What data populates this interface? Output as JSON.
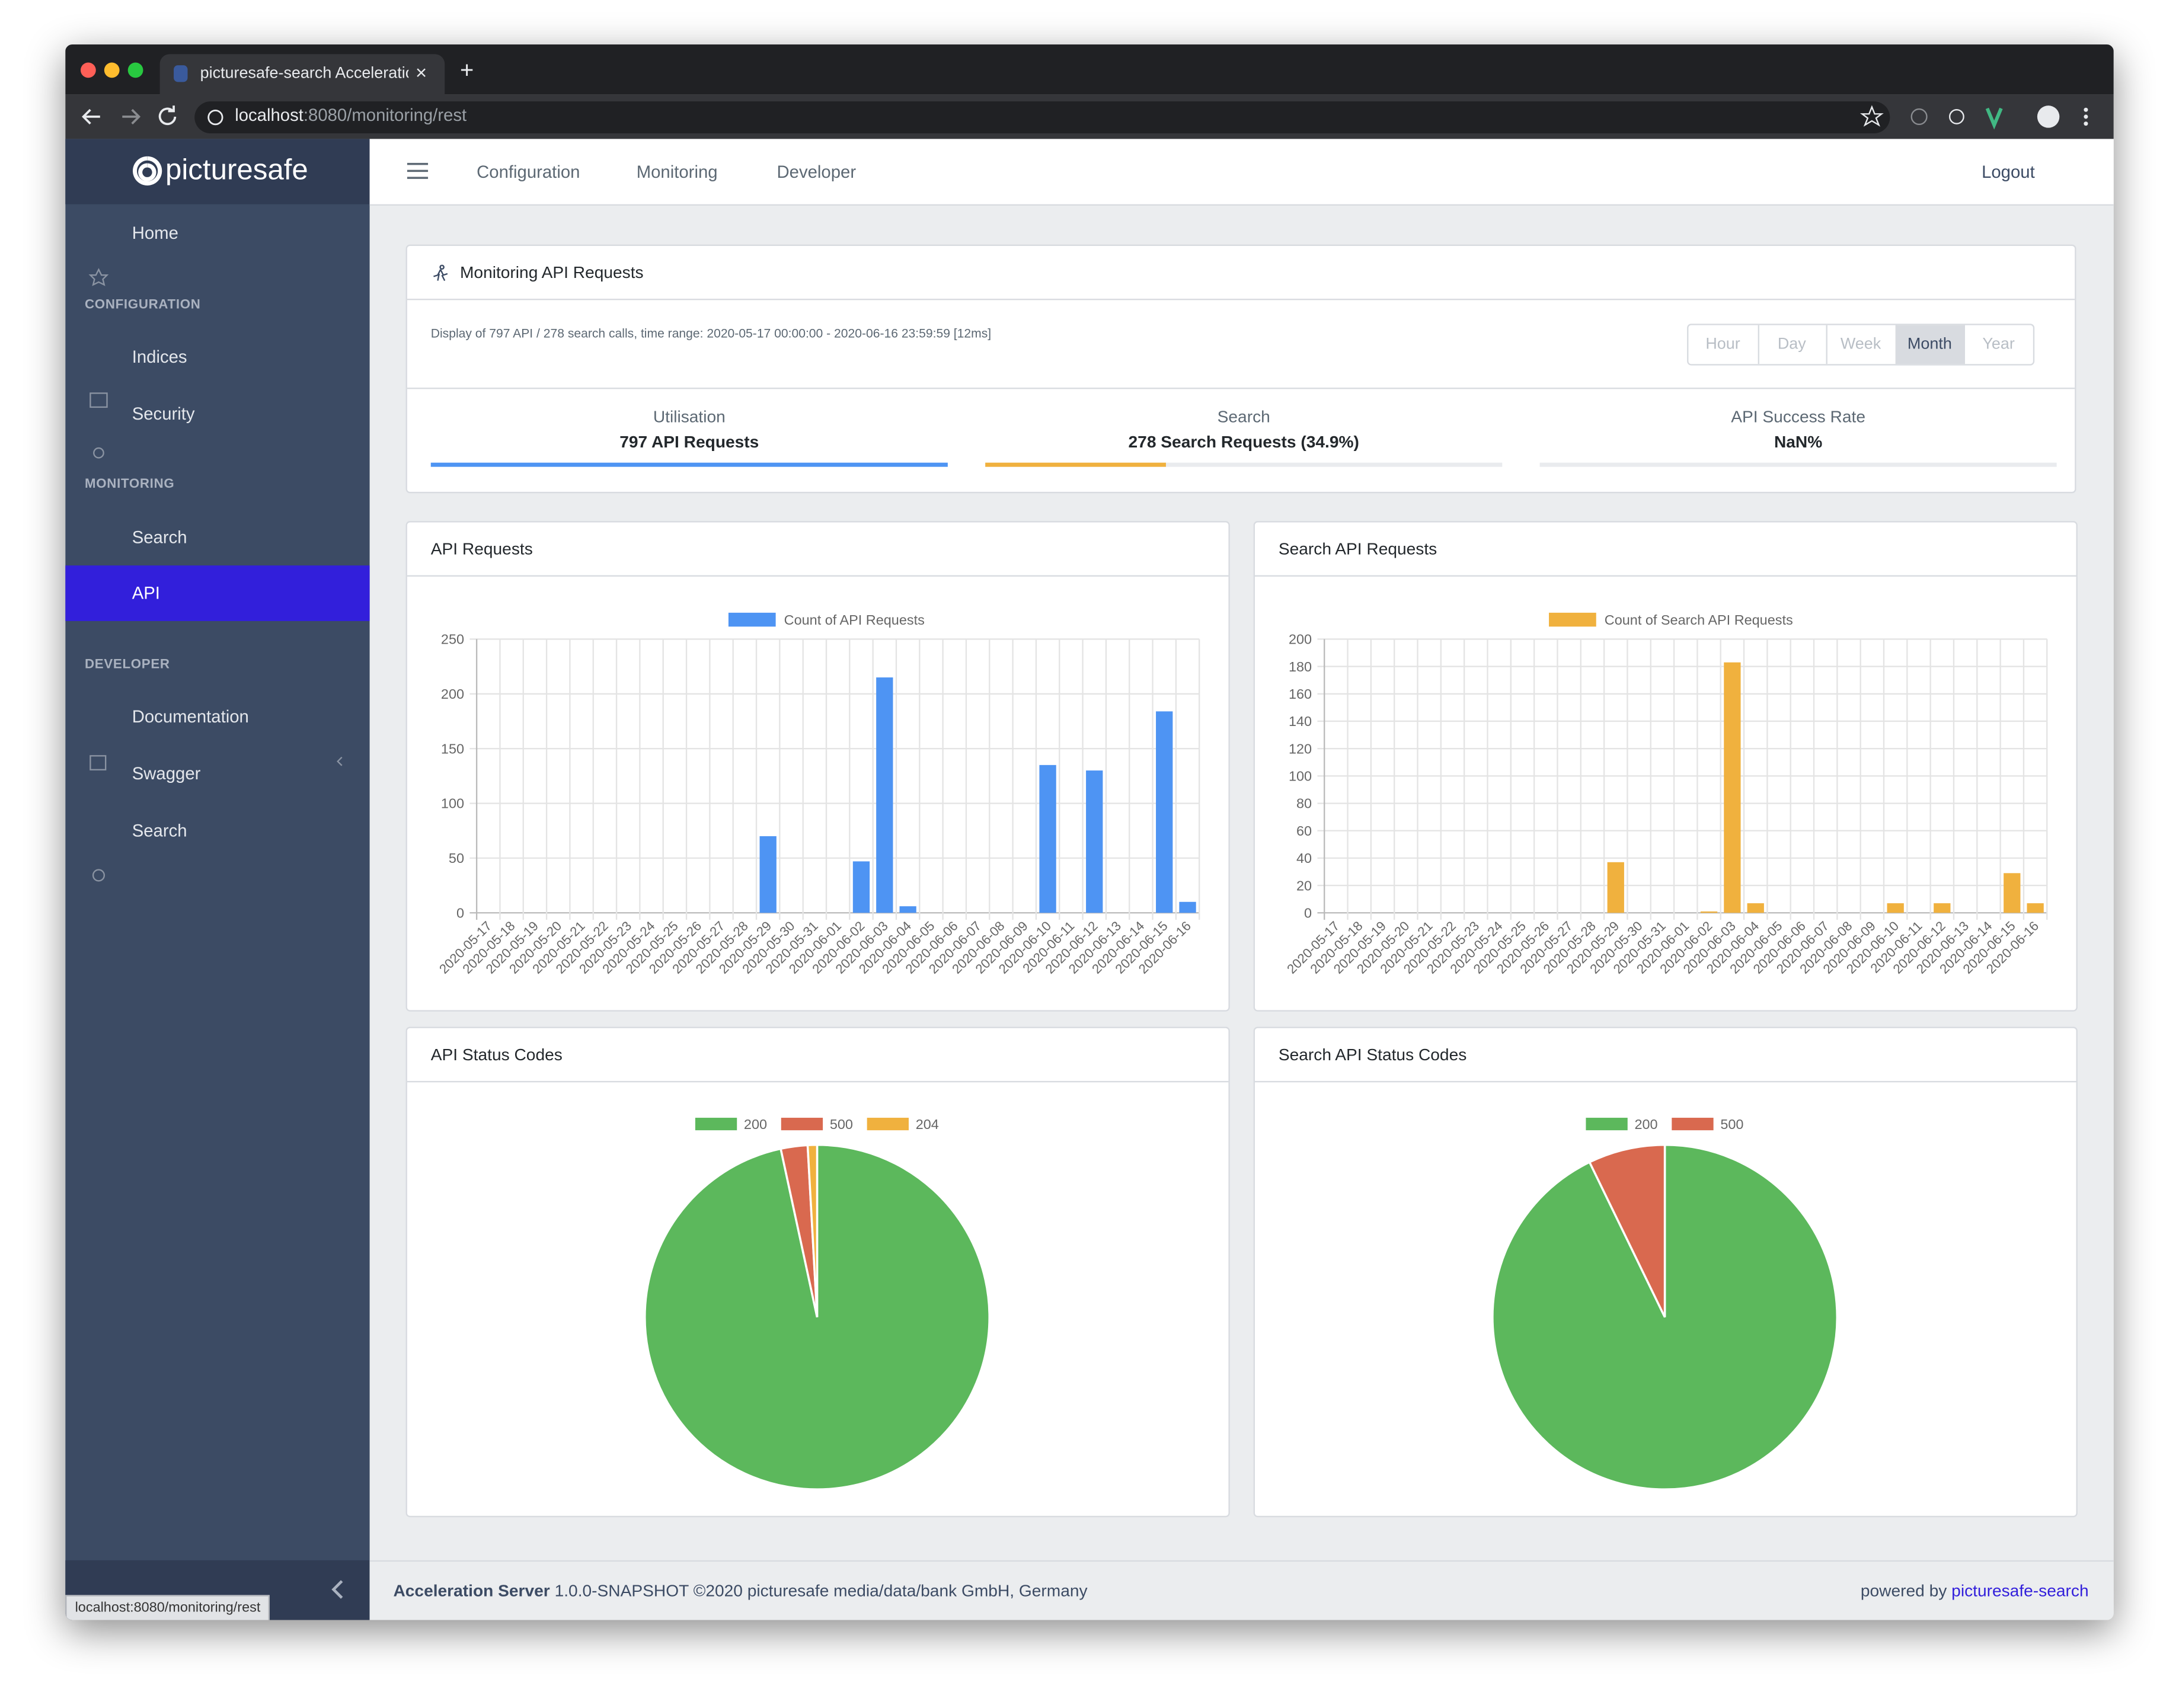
{
  "browser": {
    "tab_title": "picturesafe-search Acceleratio",
    "url_host": "localhost",
    "url_path": ":8080/monitoring/rest",
    "status_url": "localhost:8080/monitoring/rest"
  },
  "sidebar": {
    "brand": "picturesafe",
    "home": "Home",
    "configuration": {
      "header": "CONFIGURATION",
      "items": [
        "Indices",
        "Security"
      ]
    },
    "monitoring": {
      "header": "MONITORING",
      "items": [
        "Search",
        "API"
      ]
    },
    "developer": {
      "header": "DEVELOPER",
      "items": [
        "Documentation",
        "Swagger",
        "Search"
      ]
    }
  },
  "nav": {
    "items": [
      "Configuration",
      "Monitoring",
      "Developer"
    ],
    "logout": "Logout"
  },
  "summary": {
    "title": "Monitoring API Requests",
    "info": "Display of 797 API / 278 search calls, time range: 2020-05-17 00:00:00 - 2020-06-16 23:59:59 [12ms]",
    "ranges": [
      "Hour",
      "Day",
      "Week",
      "Month",
      "Year"
    ],
    "active_range": 3,
    "stats": [
      {
        "label": "Utilisation",
        "value": "797 API Requests",
        "progress": 100,
        "color": "#4e94f3"
      },
      {
        "label": "Search",
        "value": "278 Search Requests (34.9%)",
        "progress": 34.9,
        "color": "#f0b13e"
      },
      {
        "label": "API Success Rate",
        "value": "NaN%",
        "progress": 0,
        "color": "#5cb85c"
      }
    ]
  },
  "chart_data": [
    {
      "type": "bar",
      "title": "API Requests",
      "categories": [
        "2020-05-17",
        "2020-05-18",
        "2020-05-19",
        "2020-05-20",
        "2020-05-21",
        "2020-05-22",
        "2020-05-23",
        "2020-05-24",
        "2020-05-25",
        "2020-05-26",
        "2020-05-27",
        "2020-05-28",
        "2020-05-29",
        "2020-05-30",
        "2020-05-31",
        "2020-06-01",
        "2020-06-02",
        "2020-06-03",
        "2020-06-04",
        "2020-06-05",
        "2020-06-06",
        "2020-06-07",
        "2020-06-08",
        "2020-06-09",
        "2020-06-10",
        "2020-06-11",
        "2020-06-12",
        "2020-06-13",
        "2020-06-14",
        "2020-06-15",
        "2020-06-16"
      ],
      "series": [
        {
          "name": "Count of API Requests",
          "color": "#4e94f3",
          "values": [
            0,
            0,
            0,
            0,
            0,
            0,
            0,
            0,
            0,
            0,
            0,
            0,
            70,
            0,
            0,
            0,
            47,
            215,
            6,
            0,
            0,
            0,
            0,
            0,
            135,
            0,
            130,
            0,
            0,
            184,
            10
          ]
        }
      ],
      "ylim": [
        0,
        250
      ],
      "yticks": [
        0,
        50,
        100,
        150,
        200,
        250
      ],
      "grid": true
    },
    {
      "type": "bar",
      "title": "Search API Requests",
      "categories": [
        "2020-05-17",
        "2020-05-18",
        "2020-05-19",
        "2020-05-20",
        "2020-05-21",
        "2020-05-22",
        "2020-05-23",
        "2020-05-24",
        "2020-05-25",
        "2020-05-26",
        "2020-05-27",
        "2020-05-28",
        "2020-05-29",
        "2020-05-30",
        "2020-05-31",
        "2020-06-01",
        "2020-06-02",
        "2020-06-03",
        "2020-06-04",
        "2020-06-05",
        "2020-06-06",
        "2020-06-07",
        "2020-06-08",
        "2020-06-09",
        "2020-06-10",
        "2020-06-11",
        "2020-06-12",
        "2020-06-13",
        "2020-06-14",
        "2020-06-15",
        "2020-06-16"
      ],
      "series": [
        {
          "name": "Count of Search API Requests",
          "color": "#f0b13e",
          "values": [
            0,
            0,
            0,
            0,
            0,
            0,
            0,
            0,
            0,
            0,
            0,
            0,
            37,
            0,
            0,
            0,
            1,
            183,
            7,
            0,
            0,
            0,
            0,
            0,
            7,
            0,
            7,
            0,
            0,
            29,
            7
          ]
        }
      ],
      "ylim": [
        0,
        200
      ],
      "yticks": [
        0,
        20,
        40,
        60,
        80,
        100,
        120,
        140,
        160,
        180,
        200
      ],
      "grid": true
    },
    {
      "type": "pie",
      "title": "API Status Codes",
      "categories": [
        "200",
        "500",
        "204"
      ],
      "values": [
        770,
        20,
        7
      ],
      "colors": [
        "#5cb85c",
        "#d9694f",
        "#f0b13e"
      ]
    },
    {
      "type": "pie",
      "title": "Search API Status Codes",
      "categories": [
        "200",
        "500"
      ],
      "values": [
        258,
        20
      ],
      "colors": [
        "#5cb85c",
        "#d9694f"
      ]
    }
  ],
  "footer": {
    "product": "Acceleration Server",
    "version": "1.0.0-SNAPSHOT ©2020 picturesafe media/data/bank GmbH, Germany",
    "powered": "powered by",
    "link": "picturesafe-search"
  }
}
